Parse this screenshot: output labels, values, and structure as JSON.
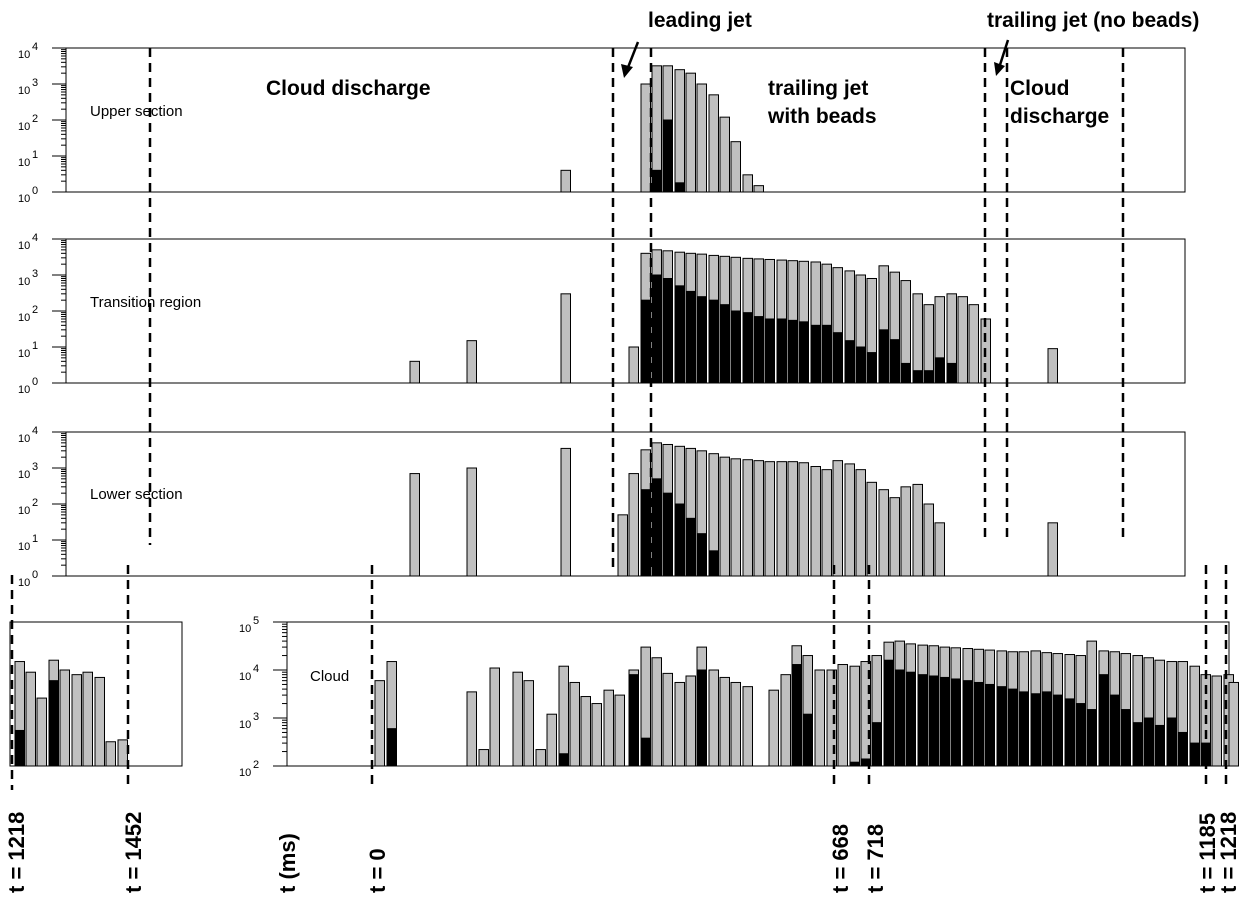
{
  "annotations": {
    "leading_jet": "leading jet",
    "trailing_jet_no_beads": "trailing jet (no beads)",
    "cloud_discharge_1": "Cloud discharge",
    "trailing_jet_with_beads": [
      "trailing jet",
      "with beads"
    ],
    "cloud_discharge_2": [
      "Cloud",
      "discharge"
    ]
  },
  "time_labels": {
    "left_1": "t = 1218",
    "left_2": "t = 1452",
    "axis": "t (ms)",
    "t0": "t = 0",
    "t668": "t = 668",
    "t718": "t = 718",
    "t1185": "t = 1185",
    "t1218": "t = 1218"
  },
  "colors": {
    "total_bar": "#c0c0c0",
    "bead_bar": "#000000",
    "axes": "#000000"
  },
  "chart_data": [
    {
      "type": "bar",
      "panel_label": "Upper section",
      "scale": "log",
      "ylim": [
        1,
        10000
      ],
      "ytick_labels": [
        "10",
        "10",
        "10",
        "10",
        "10"
      ],
      "ytick_exponents": [
        "0",
        "1",
        "2",
        "3",
        "4"
      ],
      "series": [
        {
          "role": "total",
          "values": [
            4,
            1000,
            3200,
            3200,
            2500,
            2000,
            1000,
            500,
            120,
            25,
            3,
            1.5
          ]
        },
        {
          "role": "beads",
          "values": [
            0,
            0,
            4,
            100,
            1.8,
            0,
            0,
            0,
            0,
            0,
            0,
            0
          ]
        }
      ]
    },
    {
      "type": "bar",
      "panel_label": "Transition region",
      "scale": "log",
      "ylim": [
        1,
        10000
      ],
      "ytick_labels": [
        "10",
        "10",
        "10",
        "10",
        "10"
      ],
      "ytick_exponents": [
        "0",
        "1",
        "2",
        "3",
        "4"
      ],
      "series": [
        {
          "role": "total",
          "values": [
            4,
            15,
            300,
            10,
            4000,
            5000,
            4700,
            4300,
            4000,
            3800,
            3500,
            3300,
            3100,
            2900,
            2800,
            2700,
            2600,
            2500,
            2400,
            2300,
            2000,
            1600,
            1300,
            1000,
            800,
            1800,
            1200,
            700,
            300,
            150,
            250,
            300,
            250,
            150,
            60,
            9
          ]
        },
        {
          "role": "beads",
          "values": [
            0,
            0,
            0,
            0,
            200,
            1000,
            800,
            500,
            350,
            250,
            200,
            150,
            100,
            90,
            70,
            60,
            60,
            55,
            50,
            40,
            40,
            25,
            15,
            10,
            7,
            30,
            16,
            3.5,
            2.2,
            2.2,
            5,
            3.5,
            0,
            0,
            0,
            0
          ]
        }
      ]
    },
    {
      "type": "bar",
      "panel_label": "Lower section",
      "scale": "log",
      "ylim": [
        1,
        10000
      ],
      "ytick_labels": [
        "10",
        "10",
        "10",
        "10",
        "10"
      ],
      "ytick_exponents": [
        "0",
        "1",
        "2",
        "3",
        "4"
      ],
      "series": [
        {
          "role": "total",
          "values": [
            700,
            1000,
            3500,
            50,
            700,
            3200,
            5000,
            4500,
            4000,
            3500,
            3000,
            2500,
            2000,
            1800,
            1700,
            1600,
            1500,
            1500,
            1500,
            1400,
            1100,
            900,
            1600,
            1300,
            900,
            400,
            250,
            150,
            300,
            350,
            100,
            30,
            30
          ]
        },
        {
          "role": "beads",
          "values": [
            0,
            0,
            0,
            0,
            0,
            250,
            500,
            200,
            100,
            40,
            15,
            5,
            0,
            0,
            0,
            0,
            0,
            0,
            0,
            0,
            0,
            0,
            0,
            0,
            0,
            0,
            0,
            0,
            0,
            0,
            0,
            0,
            0
          ]
        }
      ]
    },
    {
      "type": "bar",
      "panel_label": "Cloud",
      "scale": "log",
      "ylim": [
        100,
        100000
      ],
      "ytick_labels": [
        "10",
        "10",
        "10",
        "10"
      ],
      "ytick_exponents": [
        "2",
        "3",
        "4",
        "5"
      ],
      "series": [
        {
          "role": "total",
          "values": [
            6000,
            15000,
            3500,
            220,
            11000,
            9000,
            6000,
            220,
            1200,
            12000,
            5500,
            2800,
            2000,
            3800,
            3000,
            10000,
            30000,
            18000,
            8500,
            5500,
            7500,
            30000,
            10000,
            7000,
            5500,
            4500,
            3800,
            8000,
            32000,
            20000,
            10000,
            10000,
            13000,
            12000,
            15000,
            20000,
            38000,
            40000,
            35000,
            33000,
            32000,
            30000,
            29000,
            28000,
            27000,
            26000,
            25000,
            24000,
            24000,
            25000,
            23000,
            22000,
            21000,
            20000,
            40000,
            25000,
            24000,
            22000,
            20000,
            18000,
            16000,
            15000,
            15000,
            12000,
            8000,
            7500,
            8000,
            5500
          ]
        },
        {
          "role": "beads",
          "values": [
            0,
            600,
            0,
            0,
            0,
            0,
            0,
            0,
            0,
            180,
            0,
            0,
            0,
            0,
            0,
            8000,
            380,
            0,
            0,
            0,
            0,
            10000,
            0,
            0,
            0,
            0,
            0,
            0,
            13000,
            1200,
            0,
            0,
            0,
            120,
            140,
            800,
            16000,
            10000,
            9000,
            8000,
            7500,
            7000,
            6500,
            6000,
            5500,
            5000,
            4500,
            4000,
            3500,
            3200,
            3500,
            3000,
            2500,
            2000,
            1500,
            8000,
            3000,
            1500,
            800,
            1000,
            700,
            1000,
            500,
            300,
            300,
            0,
            0,
            0
          ]
        }
      ]
    },
    {
      "type": "bar",
      "panel_label": "",
      "scale": "log",
      "ylim": [
        100,
        100000
      ],
      "series": [
        {
          "role": "total",
          "values": [
            15000,
            9000,
            2600,
            16000,
            10000,
            8000,
            9000,
            7000,
            320,
            350
          ]
        },
        {
          "role": "beads",
          "values": [
            550,
            0,
            0,
            6000,
            0,
            0,
            0,
            0,
            0,
            0
          ]
        }
      ]
    }
  ]
}
